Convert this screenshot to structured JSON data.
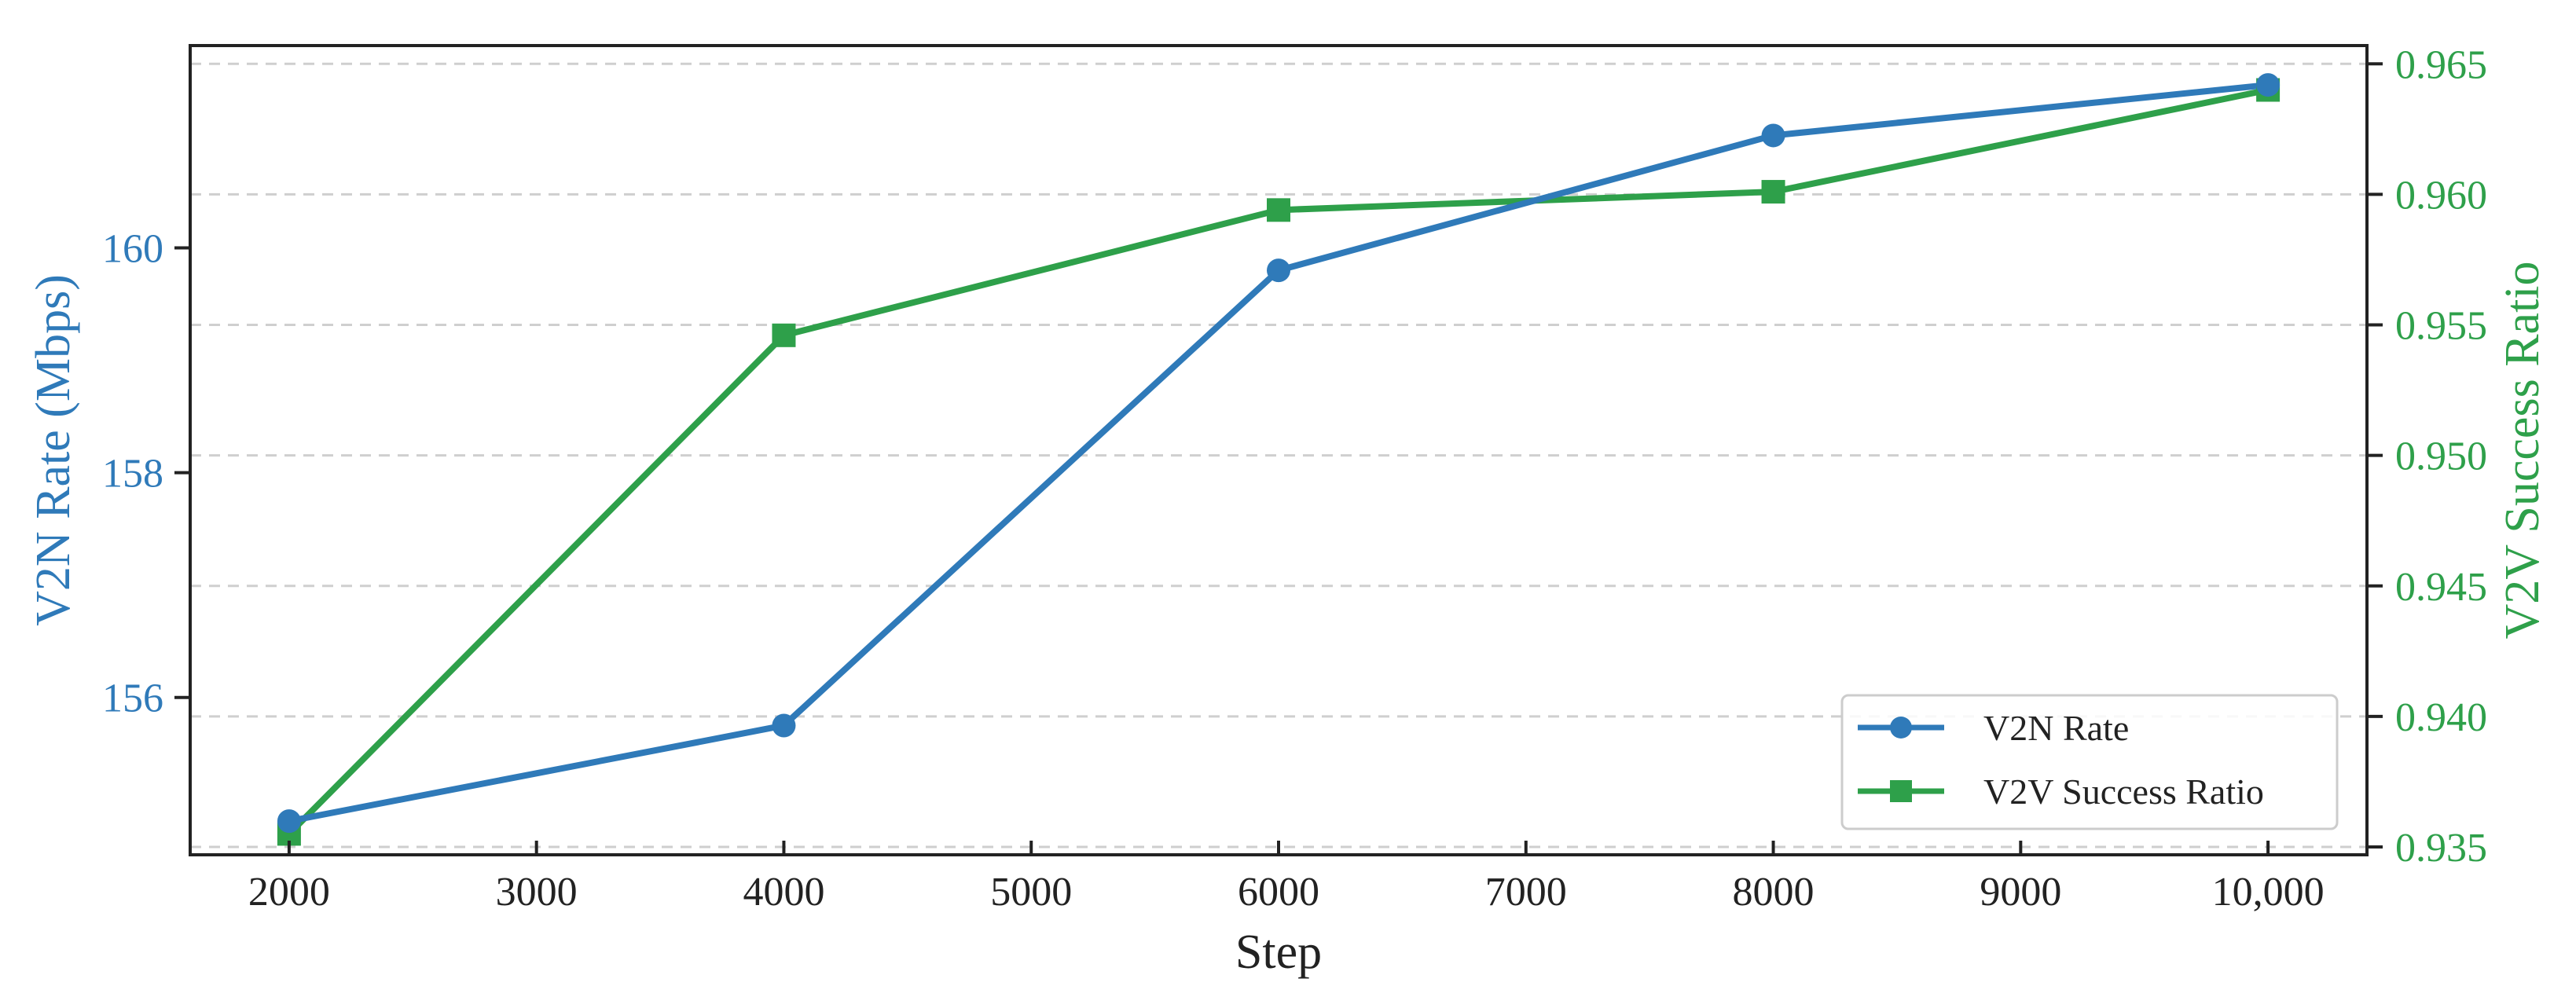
{
  "chart_data": {
    "type": "line",
    "x": [
      2000,
      4000,
      6000,
      8000,
      10000
    ],
    "xlabel": "Step",
    "xlim": [
      1600,
      10400
    ],
    "xticks": [
      2000,
      3000,
      4000,
      5000,
      6000,
      7000,
      8000,
      9000,
      10000
    ],
    "xtick_labels": [
      "2000",
      "3000",
      "4000",
      "5000",
      "6000",
      "7000",
      "8000",
      "9000",
      "10,000"
    ],
    "y_left": {
      "label": "V2N Rate (Mbps)",
      "lim": [
        154.6,
        161.8
      ],
      "ticks": [
        156,
        158,
        160
      ],
      "tick_labels": [
        "156",
        "158",
        "160"
      ],
      "color": "#2f7ab9"
    },
    "y_right": {
      "label": "V2V Success Ratio",
      "lim": [
        0.9347,
        0.9657
      ],
      "ticks": [
        0.935,
        0.94,
        0.945,
        0.95,
        0.955,
        0.96,
        0.965
      ],
      "tick_labels": [
        "0.935",
        "0.940",
        "0.945",
        "0.950",
        "0.955",
        "0.960",
        "0.965"
      ],
      "color": "#2ea04a"
    },
    "series": [
      {
        "name": "V2N Rate",
        "axis": "left",
        "marker": "circle",
        "color": "#2f7ab9",
        "values": [
          154.9,
          155.75,
          159.8,
          161.0,
          161.45
        ]
      },
      {
        "name": "V2V Success Ratio",
        "axis": "right",
        "marker": "square",
        "color": "#2ea04a",
        "values": [
          0.9355,
          0.9546,
          0.9594,
          0.9601,
          0.964
        ]
      }
    ],
    "grid": "horizontal dashed, at right-axis ticks",
    "legend_position": "lower-right"
  }
}
